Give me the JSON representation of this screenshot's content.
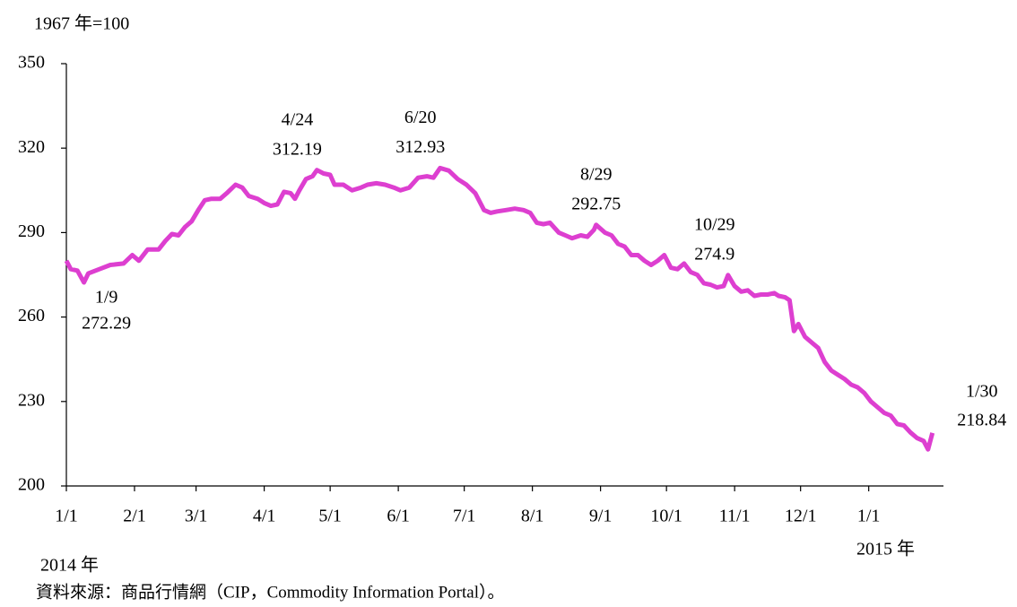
{
  "chart_data": {
    "type": "line",
    "unit_label": "1967 年=100",
    "start_year": "2014 年",
    "end_year": "2015 年",
    "source": "資料來源：商品行情網（CIP，Commodity Information Portal）。",
    "color": "#dd3fd0",
    "xlim": [
      0,
      399
    ],
    "xticks": [
      {
        "value": 0,
        "label": "1/1"
      },
      {
        "value": 31,
        "label": "2/1"
      },
      {
        "value": 59,
        "label": "3/1"
      },
      {
        "value": 90,
        "label": "4/1"
      },
      {
        "value": 120,
        "label": "5/1"
      },
      {
        "value": 151,
        "label": "6/1"
      },
      {
        "value": 181,
        "label": "7/1"
      },
      {
        "value": 212,
        "label": "8/1"
      },
      {
        "value": 243,
        "label": "9/1"
      },
      {
        "value": 273,
        "label": "10/1"
      },
      {
        "value": 304,
        "label": "11/1"
      },
      {
        "value": 334,
        "label": "12/1"
      },
      {
        "value": 365,
        "label": "1/1"
      }
    ],
    "ylim": [
      200,
      350
    ],
    "yticks": [
      200,
      230,
      260,
      290,
      320,
      350
    ],
    "x": [
      0,
      2,
      5,
      8,
      10,
      15,
      20,
      26,
      30,
      33,
      37,
      42,
      45,
      48,
      51,
      54,
      57,
      60,
      63,
      66,
      70,
      73,
      77,
      80,
      83,
      87,
      90,
      93,
      96,
      99,
      102,
      104,
      106,
      109,
      112,
      114,
      117,
      120,
      122,
      126,
      130,
      134,
      137,
      141,
      145,
      149,
      152,
      156,
      160,
      164,
      167,
      170,
      174,
      178,
      182,
      186,
      190,
      193,
      196,
      200,
      204,
      208,
      211,
      214,
      217,
      220,
      224,
      227,
      230,
      234,
      237,
      240,
      241,
      245,
      248,
      251,
      254,
      257,
      260,
      263,
      266,
      269,
      272,
      275,
      278,
      281,
      284,
      287,
      290,
      293,
      296,
      299,
      301,
      304,
      307,
      310,
      313,
      316,
      319,
      322,
      324,
      327,
      329,
      331,
      333,
      336,
      339,
      342,
      345,
      348,
      351,
      354,
      357,
      360,
      363,
      366,
      369,
      372,
      375,
      378,
      381,
      384,
      387,
      390,
      392,
      394
    ],
    "values": [
      280,
      277,
      276.5,
      272.29,
      275.5,
      277,
      278.5,
      279,
      282,
      280,
      284,
      284,
      287,
      289.5,
      289,
      292,
      294,
      298,
      301.5,
      302,
      302,
      304,
      307,
      306,
      303,
      302,
      300.5,
      299.5,
      300,
      304.5,
      304,
      302,
      305,
      309,
      310,
      312.19,
      311,
      310.5,
      307,
      307,
      305,
      306,
      307,
      307.5,
      307,
      306,
      305,
      306,
      309.5,
      310,
      309.5,
      312.93,
      312,
      309,
      307,
      304,
      298,
      297,
      297.5,
      298,
      298.5,
      298,
      297,
      293.5,
      293,
      293.5,
      290,
      289,
      288,
      289,
      288.5,
      291,
      292.75,
      290,
      289,
      286,
      285,
      282,
      282,
      280,
      278.5,
      280,
      282,
      277.5,
      277,
      279,
      276,
      275,
      272,
      271.5,
      270.5,
      271,
      274.9,
      271,
      269,
      269.5,
      267.5,
      268,
      268,
      268.5,
      267.5,
      267,
      266,
      255,
      257.5,
      253,
      251,
      249,
      244,
      241,
      239.5,
      238,
      236,
      235,
      233,
      230,
      228,
      226,
      225,
      222,
      221.5,
      219,
      217,
      216,
      213,
      218.84
    ],
    "annotations": [
      {
        "label": "1/9",
        "x": 8,
        "value": 272.29
      },
      {
        "label": "4/24",
        "x": 114,
        "value": 312.19
      },
      {
        "label": "6/20",
        "x": 170,
        "value": 312.93
      },
      {
        "label": "8/29",
        "x": 241,
        "value": 292.75
      },
      {
        "label": "10/29",
        "x": 301,
        "value": 274.9
      },
      {
        "label": "1/30",
        "x": 394,
        "value": 218.84
      }
    ]
  }
}
